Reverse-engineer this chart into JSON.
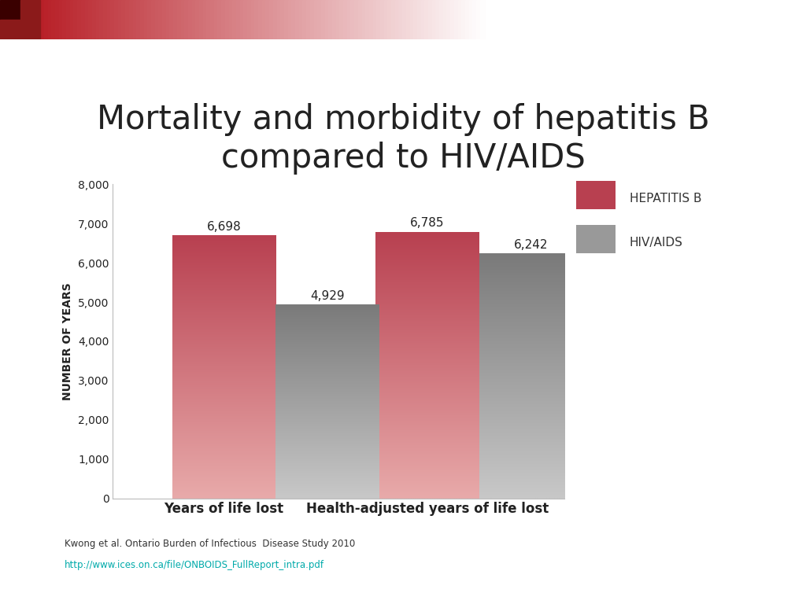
{
  "title": "Mortality and morbidity of hepatitis B\ncompared to HIV/AIDS",
  "categories": [
    "Years of life lost",
    "Health-adjusted years of life lost"
  ],
  "hepatitis_b_values": [
    6698,
    6785
  ],
  "hiv_aids_values": [
    4929,
    6242
  ],
  "ylabel": "NUMBER OF YEARS",
  "ylim": [
    0,
    8000
  ],
  "yticks": [
    0,
    1000,
    2000,
    3000,
    4000,
    5000,
    6000,
    7000,
    8000
  ],
  "ytick_labels": [
    "0",
    "1,000",
    "2,000",
    "3,000",
    "4,000",
    "5,000",
    "6,000",
    "7,000",
    "8,000"
  ],
  "hep_b_color_top": "#b84050",
  "hep_b_color_bottom": "#e8aaaa",
  "hiv_color_top": "#7a7a7a",
  "hiv_color_bottom": "#c8c8c8",
  "legend_hep_color": "#b84050",
  "legend_hiv_color": "#999999",
  "bar_labels_hep": [
    "6,698",
    "6,785"
  ],
  "bar_labels_hiv": [
    "4,929",
    "6,242"
  ],
  "ref_text": "Kwong et al. Ontario Burden of Infectious  Disease Study 2010",
  "ref_url": "http://www.ices.on.ca/file/ONBOIDS_FullReport_intra.pdf",
  "background_color": "#ffffff",
  "title_fontsize": 30,
  "axis_label_fontsize": 10,
  "tick_fontsize": 10,
  "bar_label_fontsize": 11,
  "legend_fontsize": 11,
  "bar_width": 0.28,
  "group_positions": [
    0.3,
    0.85
  ],
  "xlim": [
    0.0,
    1.22
  ]
}
